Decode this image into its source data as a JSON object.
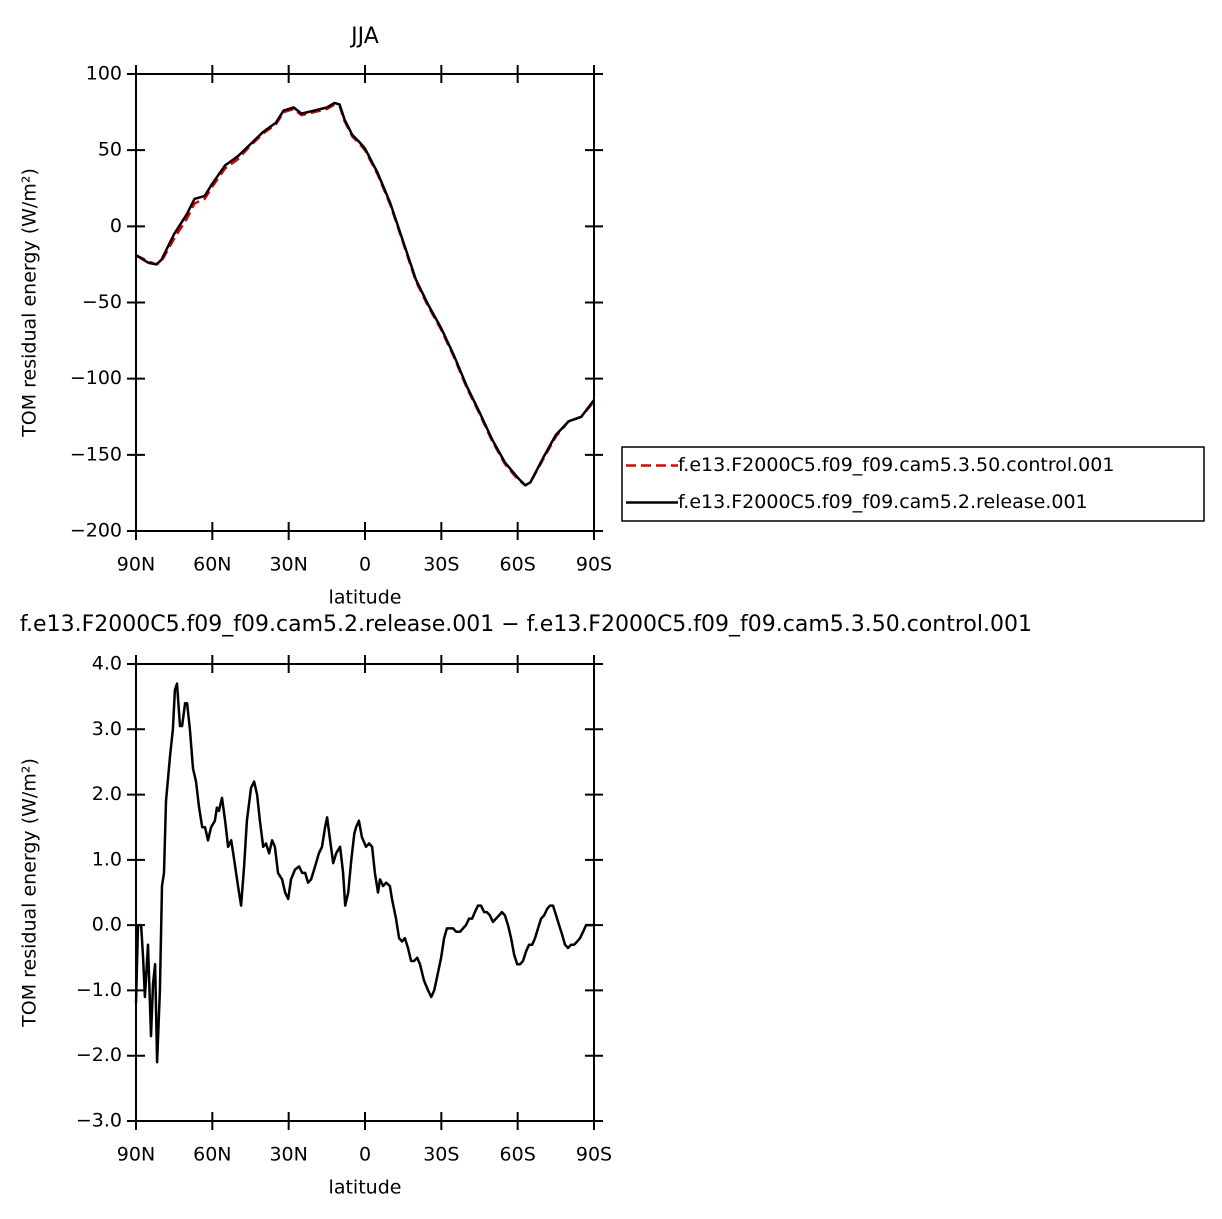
{
  "chart_data": [
    {
      "type": "line",
      "title": "JJA",
      "xlabel": "latitude",
      "ylabel": "TOM residual energy (W/m²)",
      "x": [
        90,
        85,
        82,
        80,
        75,
        70,
        67,
        63,
        60,
        55,
        50,
        45,
        40,
        35,
        32,
        28,
        25,
        20,
        15,
        12,
        10,
        8,
        5,
        2,
        0,
        -5,
        -10,
        -15,
        -20,
        -25,
        -30,
        -35,
        -40,
        -45,
        -50,
        -55,
        -60,
        -63,
        -65,
        -70,
        -75,
        -80,
        -85,
        -90
      ],
      "series": [
        {
          "name": "f.e13.F2000C5.f09_f09.cam5.3.50.control.001",
          "color": "#e00000",
          "dash": "dashed",
          "values": [
            -19,
            -23,
            -25,
            -23,
            -8,
            5,
            15,
            18,
            26,
            38,
            44,
            53,
            61,
            67,
            75,
            77,
            73,
            75,
            77,
            80,
            79,
            69,
            59,
            54,
            50,
            34,
            14,
            -11,
            -36,
            -53,
            -68,
            -86,
            -106,
            -123,
            -141,
            -156,
            -166,
            -170,
            -168,
            -153,
            -138,
            -128,
            -125,
            -115
          ]
        },
        {
          "name": "f.e13.F2000C5.f09_f09.cam5.2.release.001",
          "color": "#000000",
          "dash": "solid",
          "values": [
            -19,
            -24,
            -25,
            -22,
            -5,
            8,
            18,
            20,
            28,
            40,
            46,
            54,
            62,
            68,
            76,
            78,
            74,
            76,
            78,
            81,
            80,
            70,
            60,
            55,
            51,
            35,
            15,
            -10,
            -35,
            -52,
            -67,
            -85,
            -105,
            -122,
            -140,
            -155,
            -165,
            -170,
            -168,
            -152,
            -137,
            -128,
            -125,
            -114
          ]
        }
      ],
      "xlim": [
        90,
        -90
      ],
      "xticks": [
        {
          "value": 90,
          "label": "90N"
        },
        {
          "value": 60,
          "label": "60N"
        },
        {
          "value": 30,
          "label": "30N"
        },
        0,
        {
          "value": -30,
          "label": "30S"
        },
        {
          "value": -60,
          "label": "60S"
        },
        {
          "value": -90,
          "label": "90S"
        }
      ],
      "ylim": [
        -200,
        100
      ],
      "yticks": [
        100,
        50,
        0,
        {
          "value": -50,
          "label": "−50"
        },
        {
          "value": -100,
          "label": "−100"
        },
        {
          "value": -150,
          "label": "−150"
        },
        {
          "value": -200,
          "label": "−200"
        }
      ],
      "legend": "right"
    },
    {
      "type": "line",
      "title": "f.e13.F2000C5.f09_f09.cam5.2.release.001 − f.e13.F2000C5.f09_f09.cam5.3.50.control.001",
      "xlabel": "latitude",
      "ylabel": "TOM residual energy (W/m²)",
      "x": [
        90,
        89.2,
        88,
        87.2,
        86.5,
        85.3,
        84.1,
        83.3,
        82.5,
        81.7,
        80.6,
        79.8,
        79,
        78.2,
        76.6,
        75.5,
        74.7,
        73.9,
        72.7,
        71.9,
        70.7,
        69.9,
        68.8,
        67.6,
        66.4,
        65.2,
        64,
        62.9,
        61.7,
        60.5,
        59,
        58.2,
        57.4,
        56.2,
        55,
        53.8,
        52.6,
        51.4,
        49.9,
        48.7,
        47.5,
        46.4,
        44.8,
        43.6,
        42.4,
        41.3,
        40,
        38.9,
        37.7,
        36.5,
        35.4,
        34.2,
        32.6,
        31.4,
        30.2,
        29.1,
        27.5,
        25.9,
        24.7,
        23.5,
        22.4,
        21.2,
        19.6,
        18.1,
        16.9,
        15.7,
        14.9,
        13.7,
        12.5,
        11.3,
        9.8,
        8.6,
        7.8,
        6.6,
        5.4,
        4.2,
        3.5,
        2.4,
        1.2,
        -0.4,
        -1.6,
        -2.8,
        -3.9,
        -5.1,
        -5.9,
        -7.1,
        -8.3,
        -9.8,
        -10.6,
        -12.2,
        -13.4,
        -14.6,
        -15.7,
        -16.9,
        -18.1,
        -19.3,
        -20.5,
        -21.6,
        -23.2,
        -24.8,
        -26,
        -27.2,
        -28.3,
        -29.9,
        -31.1,
        -32.2,
        -33.4,
        -34.6,
        -35.8,
        -37.4,
        -38.5,
        -39.7,
        -40.9,
        -42.1,
        -43.2,
        -44.4,
        -45.6,
        -46.8,
        -47.9,
        -49.1,
        -50.3,
        -51.5,
        -52.7,
        -53.8,
        -55,
        -56.2,
        -57.4,
        -58.6,
        -59.8,
        -60.9,
        -62.1,
        -63.3,
        -64.5,
        -65.7,
        -66.8,
        -68,
        -69.2,
        -70.4,
        -71.6,
        -72.7,
        -73.9,
        -75.1,
        -76.3,
        -77.5,
        -78.6,
        -79.8,
        -81,
        -82.2,
        -83.4,
        -84.5,
        -85.7,
        -86.9,
        -88.4,
        -90
      ],
      "series": [
        {
          "color": "#000000",
          "dash": "solid",
          "values": [
            -1.2,
            0.0,
            0.0,
            -0.5,
            -1.1,
            -0.3,
            -1.7,
            -0.9,
            -0.6,
            -2.1,
            -1.0,
            0.6,
            0.8,
            1.9,
            2.6,
            3.0,
            3.6,
            3.7,
            3.05,
            3.05,
            3.4,
            3.4,
            3.0,
            2.4,
            2.2,
            1.8,
            1.5,
            1.5,
            1.3,
            1.5,
            1.6,
            1.8,
            1.75,
            1.95,
            1.6,
            1.2,
            1.3,
            1.0,
            0.6,
            0.3,
            0.9,
            1.6,
            2.1,
            2.2,
            2.0,
            1.6,
            1.2,
            1.25,
            1.1,
            1.3,
            1.2,
            0.8,
            0.7,
            0.5,
            0.4,
            0.7,
            0.85,
            0.9,
            0.8,
            0.8,
            0.65,
            0.7,
            0.9,
            1.1,
            1.2,
            1.5,
            1.65,
            1.3,
            0.95,
            1.1,
            1.2,
            0.8,
            0.3,
            0.5,
            1.0,
            1.4,
            1.5,
            1.6,
            1.35,
            1.2,
            1.25,
            1.2,
            0.8,
            0.5,
            0.7,
            0.6,
            0.65,
            0.6,
            0.4,
            0.1,
            -0.2,
            -0.25,
            -0.2,
            -0.35,
            -0.55,
            -0.55,
            -0.5,
            -0.6,
            -0.85,
            -1.0,
            -1.1,
            -1.0,
            -0.8,
            -0.5,
            -0.2,
            -0.05,
            -0.05,
            -0.05,
            -0.1,
            -0.1,
            -0.05,
            0.0,
            0.1,
            0.1,
            0.2,
            0.3,
            0.3,
            0.2,
            0.2,
            0.15,
            0.05,
            0.1,
            0.15,
            0.2,
            0.15,
            0.0,
            -0.2,
            -0.45,
            -0.6,
            -0.6,
            -0.55,
            -0.4,
            -0.3,
            -0.3,
            -0.2,
            -0.05,
            0.1,
            0.15,
            0.25,
            0.3,
            0.3,
            0.15,
            0.0,
            -0.15,
            -0.3,
            -0.35,
            -0.3,
            -0.3,
            -0.25,
            -0.2,
            -0.1,
            0.0,
            0.0,
            0.0
          ]
        }
      ],
      "xlim": [
        90,
        -90
      ],
      "xticks": [
        {
          "value": 90,
          "label": "90N"
        },
        {
          "value": 60,
          "label": "60N"
        },
        {
          "value": 30,
          "label": "30N"
        },
        0,
        {
          "value": -30,
          "label": "30S"
        },
        {
          "value": -60,
          "label": "60S"
        },
        {
          "value": -90,
          "label": "90S"
        }
      ],
      "ylim": [
        -3,
        4
      ],
      "yticks": [
        {
          "value": 4,
          "label": "4.0"
        },
        {
          "value": 3,
          "label": "3.0"
        },
        {
          "value": 2,
          "label": "2.0"
        },
        {
          "value": 1,
          "label": "1.0"
        },
        {
          "value": 0,
          "label": "0.0"
        },
        {
          "value": -1,
          "label": "−1.0"
        },
        {
          "value": -2,
          "label": "−2.0"
        },
        {
          "value": -3,
          "label": "−3.0"
        }
      ]
    }
  ]
}
